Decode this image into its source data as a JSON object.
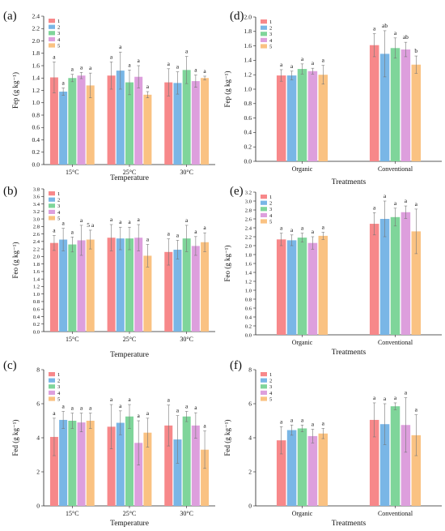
{
  "figure": {
    "colors": [
      "#f7888a",
      "#79b6e6",
      "#7fd59a",
      "#dd9fdd",
      "#fac282"
    ]
  },
  "chart_data": [
    {
      "panel_label": "(a)",
      "type": "bar",
      "ylabel": "Fep (g kg⁻¹)",
      "xlabel": "Temperature",
      "categories": [
        "15°C",
        "25°C",
        "30°C"
      ],
      "ylim": [
        0,
        2.4
      ],
      "yticks": [
        0,
        0.2,
        0.4,
        0.6,
        0.8,
        1.0,
        1.2,
        1.4,
        1.6,
        1.8,
        2.0,
        2.2,
        2.4
      ],
      "legend_labels": [
        "1",
        "2",
        "3",
        "4",
        "5"
      ],
      "series": [
        {
          "values": [
            1.41,
            1.44,
            1.33
          ],
          "errors": [
            0.25,
            0.22,
            0.22
          ],
          "letters": [
            "a",
            "a",
            "a"
          ]
        },
        {
          "values": [
            1.18,
            1.52,
            1.32
          ],
          "errors": [
            0.06,
            0.3,
            0.18
          ],
          "letters": [
            "a",
            "a",
            "a"
          ]
        },
        {
          "values": [
            1.4,
            1.33,
            1.53
          ],
          "errors": [
            0.06,
            0.2,
            0.22
          ],
          "letters": [
            "a",
            "a",
            "a"
          ]
        },
        {
          "values": [
            1.44,
            1.42,
            1.35
          ],
          "errors": [
            0.05,
            0.18,
            0.1
          ],
          "letters": [
            "a",
            "a",
            "a"
          ]
        },
        {
          "values": [
            1.28,
            1.13,
            1.4
          ],
          "errors": [
            0.2,
            0.05,
            0.03
          ],
          "letters": [
            "a",
            "a",
            "a"
          ]
        }
      ]
    },
    {
      "panel_label": "(b)",
      "type": "bar",
      "ylabel": "Feo (g kg⁻¹)",
      "xlabel": "Temperature",
      "categories": [
        "15°C",
        "25°C",
        "30°C"
      ],
      "ylim": [
        0,
        3.8
      ],
      "yticks": [
        0,
        0.2,
        0.4,
        0.6,
        0.8,
        1.0,
        1.2,
        1.4,
        1.6,
        1.8,
        2.0,
        2.2,
        2.4,
        2.6,
        2.8,
        3.0,
        3.2,
        3.4,
        3.6,
        3.8
      ],
      "legend_labels": [
        "1",
        "2",
        "3",
        "4",
        "5"
      ],
      "series": [
        {
          "values": [
            2.36,
            2.5,
            2.12
          ],
          "errors": [
            0.2,
            0.35,
            0.35
          ],
          "letters": [
            "a",
            "a",
            "a"
          ]
        },
        {
          "values": [
            2.45,
            2.48,
            2.18
          ],
          "errors": [
            0.3,
            0.3,
            0.25
          ],
          "letters": [
            "a",
            "a",
            "a"
          ]
        },
        {
          "values": [
            2.32,
            2.48,
            2.48
          ],
          "errors": [
            0.2,
            0.3,
            0.35
          ],
          "letters": [
            "a",
            "a",
            "a"
          ]
        },
        {
          "values": [
            2.43,
            2.5,
            2.28
          ],
          "errors": [
            0.4,
            0.35,
            0.25
          ],
          "letters": [
            "a",
            "a",
            "a"
          ]
        },
        {
          "values": [
            2.45,
            2.02,
            2.38
          ],
          "errors": [
            0.25,
            0.3,
            0.25
          ],
          "letters": [
            "5 a",
            "a",
            "a"
          ]
        }
      ]
    },
    {
      "panel_label": "(c)",
      "type": "bar",
      "ylabel": "Fed (g kg⁻¹)",
      "xlabel": "Temperature",
      "categories": [
        "15°C",
        "25°C",
        "30°C"
      ],
      "ylim": [
        0,
        8
      ],
      "yticks": [
        0,
        2,
        4,
        6,
        8
      ],
      "legend_labels": [
        "1",
        "2",
        "3",
        "4",
        "5"
      ],
      "series": [
        {
          "values": [
            4.05,
            4.65,
            4.72
          ],
          "errors": [
            1.1,
            1.3,
            1.2
          ],
          "letters": [
            "a",
            "a",
            "a"
          ]
        },
        {
          "values": [
            5.05,
            4.88,
            3.9
          ],
          "errors": [
            0.5,
            0.7,
            1.4
          ],
          "letters": [
            "a",
            "a",
            "a"
          ]
        },
        {
          "values": [
            5.0,
            5.25,
            5.25
          ],
          "errors": [
            0.45,
            0.7,
            0.3
          ],
          "letters": [
            "a",
            "a",
            "a"
          ]
        },
        {
          "values": [
            4.9,
            3.7,
            4.72
          ],
          "errors": [
            0.55,
            1.3,
            0.75
          ],
          "letters": [
            "a",
            "a",
            "a"
          ]
        },
        {
          "values": [
            5.0,
            4.3,
            3.3
          ],
          "errors": [
            0.45,
            0.85,
            1.1
          ],
          "letters": [
            "a",
            "a",
            "a"
          ]
        }
      ]
    },
    {
      "panel_label": "(d)",
      "type": "bar",
      "ylabel": "Fep (g kg⁻¹)",
      "xlabel": "Treatments",
      "categories": [
        "Organic",
        "Conventional"
      ],
      "ylim": [
        0,
        2.0
      ],
      "yticks": [
        0,
        0.2,
        0.4,
        0.6,
        0.8,
        1.0,
        1.2,
        1.4,
        1.6,
        1.8,
        2.0
      ],
      "legend_labels": [
        "1",
        "2",
        "3",
        "4",
        "5"
      ],
      "series": [
        {
          "values": [
            1.19,
            1.61
          ],
          "errors": [
            0.08,
            0.16
          ],
          "letters": [
            "a",
            "a"
          ]
        },
        {
          "values": [
            1.19,
            1.49
          ],
          "errors": [
            0.06,
            0.32
          ],
          "letters": [
            "a",
            "ab"
          ]
        },
        {
          "values": [
            1.28,
            1.57
          ],
          "errors": [
            0.07,
            0.14
          ],
          "letters": [
            "a",
            "a"
          ]
        },
        {
          "values": [
            1.25,
            1.55
          ],
          "errors": [
            0.04,
            0.1
          ],
          "letters": [
            "a",
            "ab"
          ]
        },
        {
          "values": [
            1.2,
            1.34
          ],
          "errors": [
            0.13,
            0.12
          ],
          "letters": [
            "a",
            "b"
          ]
        }
      ]
    },
    {
      "panel_label": "(e)",
      "type": "bar",
      "ylabel": "Feo (g kg⁻¹)",
      "xlabel": "Treatments",
      "categories": [
        "Organic",
        "Conventional"
      ],
      "ylim": [
        0,
        3.2
      ],
      "yticks": [
        0,
        0.2,
        0.4,
        0.6,
        0.8,
        1.0,
        1.2,
        1.4,
        1.6,
        1.8,
        2.0,
        2.2,
        2.4,
        2.6,
        2.8,
        3.0,
        3.2
      ],
      "legend_labels": [
        "1",
        "2",
        "3",
        "4",
        "5"
      ],
      "series": [
        {
          "values": [
            2.14,
            2.49
          ],
          "errors": [
            0.14,
            0.25
          ],
          "letters": [
            "a",
            "a"
          ]
        },
        {
          "values": [
            2.12,
            2.6
          ],
          "errors": [
            0.12,
            0.4
          ],
          "letters": [
            "a",
            "a"
          ]
        },
        {
          "values": [
            2.18,
            2.64
          ],
          "errors": [
            0.1,
            0.2
          ],
          "letters": [
            "a",
            "a"
          ]
        },
        {
          "values": [
            2.06,
            2.75
          ],
          "errors": [
            0.14,
            0.14
          ],
          "letters": [
            "a",
            "a"
          ]
        },
        {
          "values": [
            2.22,
            2.32
          ],
          "errors": [
            0.08,
            0.5
          ],
          "letters": [
            "a",
            "a"
          ]
        }
      ]
    },
    {
      "panel_label": "(f)",
      "type": "bar",
      "ylabel": "Fed (g kg⁻¹)",
      "xlabel": "Treatments",
      "categories": [
        "Organic",
        "Conventional"
      ],
      "ylim": [
        0,
        8
      ],
      "yticks": [
        0,
        2,
        4,
        6,
        8
      ],
      "legend_labels": [
        "1",
        "2",
        "3",
        "4",
        "5"
      ],
      "series": [
        {
          "values": [
            3.85,
            5.05
          ],
          "errors": [
            0.8,
            1.0
          ],
          "letters": [
            "a",
            "a"
          ]
        },
        {
          "values": [
            4.45,
            4.8
          ],
          "errors": [
            0.3,
            1.2
          ],
          "letters": [
            "a",
            "a"
          ]
        },
        {
          "values": [
            4.55,
            5.85
          ],
          "errors": [
            0.2,
            0.2
          ],
          "letters": [
            "a",
            "a"
          ]
        },
        {
          "values": [
            4.1,
            4.75
          ],
          "errors": [
            0.4,
            1.6
          ],
          "letters": [
            "a",
            "a"
          ]
        },
        {
          "values": [
            4.25,
            4.15
          ],
          "errors": [
            0.3,
            1.2
          ],
          "letters": [
            "a",
            "a"
          ]
        }
      ]
    }
  ]
}
